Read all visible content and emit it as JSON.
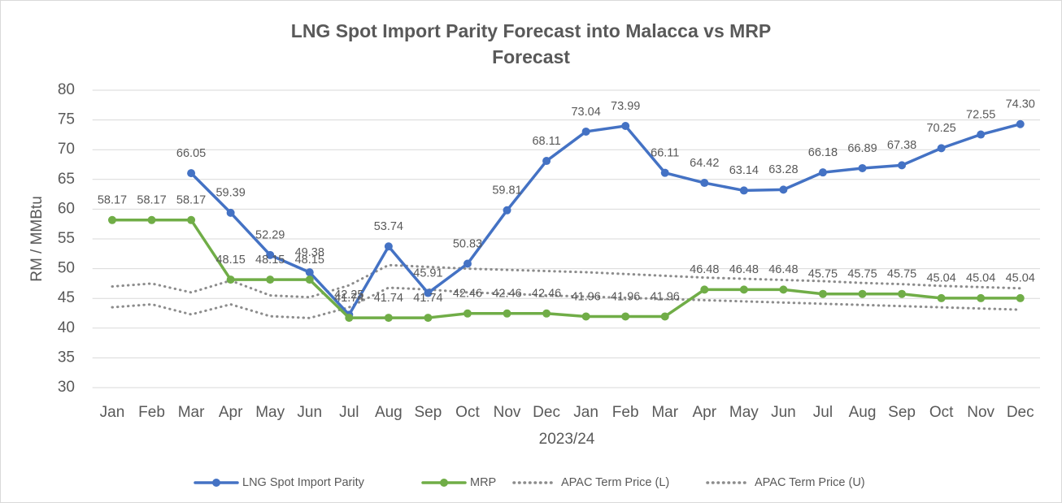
{
  "chart_data": {
    "type": "line",
    "title": "LNG Spot Import Parity Forecast into Malacca vs MRP Forecast",
    "x_label": "2023/24",
    "y_label": "RM / MMBtu",
    "categories": [
      "Jan",
      "Feb",
      "Mar",
      "Apr",
      "May",
      "Jun",
      "Jul",
      "Aug",
      "Sep",
      "Oct",
      "Nov",
      "Dec",
      "Jan",
      "Feb",
      "Mar",
      "Apr",
      "May",
      "Jun",
      "Jul",
      "Aug",
      "Sep",
      "Oct",
      "Nov",
      "Dec"
    ],
    "ylim": [
      30,
      80
    ],
    "yticks": [
      30,
      35,
      40,
      45,
      50,
      55,
      60,
      65,
      70,
      75,
      80
    ],
    "grid": true,
    "legend": "bottom",
    "series": [
      {
        "name": "LNG Spot Import Parity",
        "color": "#4472c4",
        "style": "solid",
        "markers": true,
        "values": [
          null,
          null,
          66.05,
          59.39,
          52.29,
          49.38,
          42.25,
          53.74,
          45.91,
          50.83,
          59.81,
          68.11,
          73.04,
          73.99,
          66.11,
          64.42,
          63.14,
          63.28,
          66.18,
          66.89,
          67.38,
          70.25,
          72.55,
          74.3
        ],
        "value_labels": [
          null,
          null,
          "66.05",
          "59.39",
          "52.29",
          "49.38",
          "42.25",
          "53.74",
          "45.91",
          "50.83",
          "59.81",
          "68.11",
          "73.04",
          "73.99",
          "66.11",
          "64.42",
          "63.14",
          "63.28",
          "66.18",
          "66.89",
          "67.38",
          "70.25",
          "72.55",
          "74.30"
        ]
      },
      {
        "name": "MRP",
        "color": "#70ad47",
        "style": "solid",
        "markers": true,
        "values": [
          58.17,
          58.17,
          58.17,
          48.15,
          48.15,
          48.15,
          41.74,
          41.74,
          41.74,
          42.46,
          42.46,
          42.46,
          41.96,
          41.96,
          41.96,
          46.48,
          46.48,
          46.48,
          45.75,
          45.75,
          45.75,
          45.04,
          45.04,
          45.04
        ]
      },
      {
        "name": "APAC Term Price (L)",
        "color": "#8c8c8c",
        "style": "dotted",
        "markers": false,
        "values": [
          43.5,
          44,
          42.3,
          44,
          42,
          41.7,
          43.5,
          46.8,
          46.5,
          46,
          45.8,
          45.5,
          45.3,
          45.1,
          44.9,
          44.7,
          44.5,
          44.3,
          44.1,
          43.9,
          43.7,
          43.5,
          43.3,
          43.1
        ]
      },
      {
        "name": "APAC Term Price (U)",
        "color": "#8c8c8c",
        "style": "dotted",
        "markers": false,
        "values": [
          47,
          47.5,
          46,
          48,
          45.5,
          45.2,
          47.2,
          50.6,
          50.3,
          50,
          49.8,
          49.6,
          49.4,
          49.1,
          48.8,
          48.5,
          48.3,
          48.1,
          47.9,
          47.6,
          47.4,
          47.1,
          46.9,
          46.7
        ]
      }
    ]
  }
}
